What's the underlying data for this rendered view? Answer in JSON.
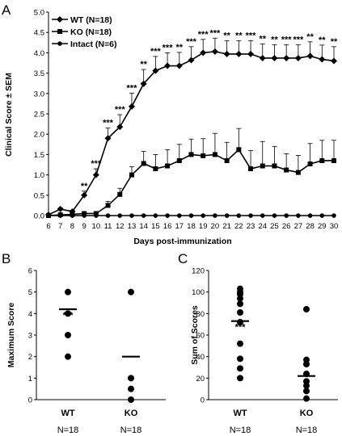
{
  "chart_data": [
    {
      "panel": "A",
      "type": "line",
      "xlabel": "Days post-immunization",
      "ylabel": "Clinical Score ± SEM",
      "x": [
        6,
        7,
        8,
        9,
        10,
        11,
        12,
        13,
        14,
        15,
        16,
        17,
        18,
        19,
        20,
        21,
        22,
        23,
        24,
        25,
        26,
        27,
        28,
        29,
        30
      ],
      "xlim": [
        6,
        30
      ],
      "ylim": [
        0,
        5
      ],
      "yticks": [
        "0.0",
        "0.5",
        "1.0",
        "1.5",
        "2.0",
        "2.5",
        "3.0",
        "3.5",
        "4.0",
        "4.5",
        "5.0"
      ],
      "grid": false,
      "legend_position": "top-left",
      "series": [
        {
          "name": "WT (N=18)",
          "marker": "diamond",
          "values": [
            0.02,
            0.16,
            0.1,
            0.5,
            1.0,
            1.9,
            2.18,
            2.68,
            3.24,
            3.56,
            3.68,
            3.68,
            3.82,
            4.0,
            4.03,
            3.97,
            3.97,
            3.97,
            3.87,
            3.87,
            3.87,
            3.87,
            3.92,
            3.84,
            3.8
          ],
          "err": [
            0.02,
            0.03,
            0.03,
            0.1,
            0.15,
            0.25,
            0.3,
            0.33,
            0.35,
            0.35,
            0.32,
            0.33,
            0.33,
            0.33,
            0.33,
            0.33,
            0.33,
            0.33,
            0.35,
            0.33,
            0.33,
            0.33,
            0.35,
            0.35,
            0.35
          ]
        },
        {
          "name": "KO (N=18)",
          "marker": "square",
          "values": [
            0.0,
            0.02,
            0.03,
            0.05,
            0.05,
            0.25,
            0.52,
            1.0,
            1.28,
            1.15,
            1.22,
            1.35,
            1.5,
            1.47,
            1.5,
            1.35,
            1.62,
            1.15,
            1.22,
            1.22,
            1.12,
            1.06,
            1.27,
            1.35,
            1.35
          ],
          "err": [
            0.0,
            0.01,
            0.02,
            0.02,
            0.02,
            0.1,
            0.15,
            0.2,
            0.3,
            0.35,
            0.4,
            0.4,
            0.38,
            0.42,
            0.52,
            0.45,
            0.52,
            0.45,
            0.6,
            0.48,
            0.4,
            0.42,
            0.5,
            0.5,
            0.5
          ]
        },
        {
          "name": "Intact (N=6)",
          "marker": "circle",
          "values": [
            0,
            0,
            0,
            0,
            0,
            0,
            0,
            0,
            0,
            0,
            0,
            0,
            0,
            0,
            0,
            0,
            0,
            0,
            0,
            0,
            0,
            0,
            0,
            0,
            0
          ]
        }
      ],
      "significance": [
        {
          "x": 9,
          "label": "**"
        },
        {
          "x": 10,
          "label": "***"
        },
        {
          "x": 11,
          "label": "***"
        },
        {
          "x": 12,
          "label": "***"
        },
        {
          "x": 13,
          "label": "***"
        },
        {
          "x": 14,
          "label": "**"
        },
        {
          "x": 15,
          "label": "***"
        },
        {
          "x": 16,
          "label": "***"
        },
        {
          "x": 17,
          "label": "**"
        },
        {
          "x": 18,
          "label": "***"
        },
        {
          "x": 19,
          "label": "***"
        },
        {
          "x": 20,
          "label": "***"
        },
        {
          "x": 21,
          "label": "**"
        },
        {
          "x": 22,
          "label": "**"
        },
        {
          "x": 23,
          "label": "***"
        },
        {
          "x": 24,
          "label": "**"
        },
        {
          "x": 25,
          "label": "**"
        },
        {
          "x": 26,
          "label": "***"
        },
        {
          "x": 27,
          "label": "***"
        },
        {
          "x": 28,
          "label": "**"
        },
        {
          "x": 29,
          "label": "**"
        },
        {
          "x": 30,
          "label": "**"
        }
      ]
    },
    {
      "panel": "B",
      "type": "scatter",
      "ylabel": "Maximum Score",
      "ylim": [
        0,
        6
      ],
      "yticks": [
        "0",
        "1",
        "2",
        "3",
        "4",
        "5",
        "6"
      ],
      "categories": [
        "WT",
        "KO"
      ],
      "n_labels": [
        "N=18",
        "N=18"
      ],
      "groups": [
        {
          "name": "WT",
          "points": [
            5,
            4,
            3,
            2
          ],
          "mean": 4.2,
          "significance": "***"
        },
        {
          "name": "KO",
          "points": [
            5,
            1,
            0.5,
            0
          ],
          "mean": 2.0
        }
      ]
    },
    {
      "panel": "C",
      "type": "scatter",
      "ylabel": "Sum of Scores",
      "ylim": [
        0,
        120
      ],
      "yticks": [
        "0",
        "20",
        "40",
        "60",
        "80",
        "100",
        "120"
      ],
      "categories": [
        "WT",
        "KO"
      ],
      "n_labels": [
        "N=18",
        "N=18"
      ],
      "groups": [
        {
          "name": "WT",
          "points": [
            103,
            100,
            98,
            94,
            89,
            81,
            72,
            52,
            38,
            29,
            20
          ],
          "mean": 73,
          "significance": "***"
        },
        {
          "name": "KO",
          "points": [
            84,
            37,
            33,
            24,
            17,
            13,
            8,
            1
          ],
          "mean": 22
        }
      ]
    }
  ]
}
